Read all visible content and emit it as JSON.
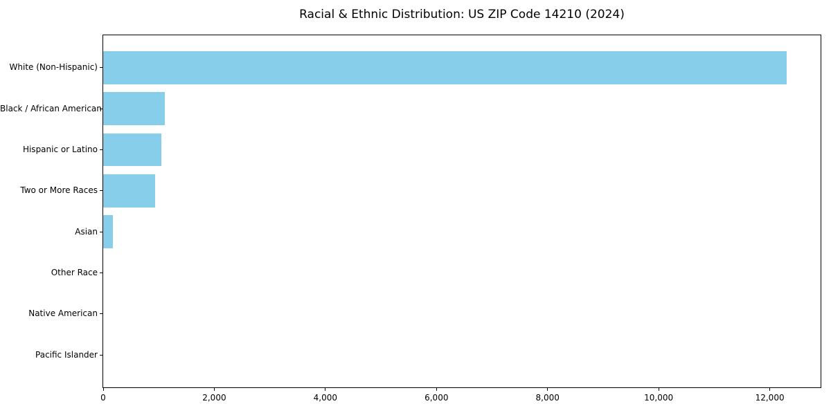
{
  "chart_data": {
    "type": "bar",
    "orientation": "horizontal",
    "title": "Racial & Ethnic Distribution: US ZIP Code 14210 (2024)",
    "categories": [
      "White (Non-Hispanic)",
      "Black / African American",
      "Hispanic or Latino",
      "Two or More Races",
      "Asian",
      "Other Race",
      "Native American",
      "Pacific Islander"
    ],
    "values": [
      12300,
      1110,
      1050,
      935,
      170,
      0,
      0,
      0
    ],
    "xlabel": "",
    "ylabel": "",
    "xlim": [
      0,
      12915
    ],
    "x_ticks": [
      {
        "value": 0,
        "label": "0"
      },
      {
        "value": 2000,
        "label": "2,000"
      },
      {
        "value": 4000,
        "label": "4,000"
      },
      {
        "value": 6000,
        "label": "6,000"
      },
      {
        "value": 8000,
        "label": "8,000"
      },
      {
        "value": 10000,
        "label": "10,000"
      },
      {
        "value": 12000,
        "label": "12,000"
      }
    ],
    "bar_color": "#87CEEB",
    "text_color": "#000000",
    "grid": false,
    "legend": null
  }
}
